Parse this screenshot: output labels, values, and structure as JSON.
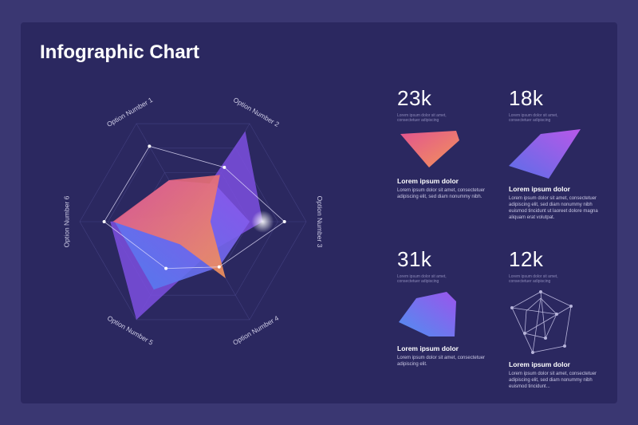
{
  "title": "Infographic Chart",
  "colors": {
    "background": "#3a3772",
    "card": "#2b2860",
    "coral": "#f07a63",
    "pink": "#e0568c",
    "violet": "#9a5cf0",
    "blue": "#5b6ee8"
  },
  "chart_data": {
    "type": "radar",
    "axes": [
      "Option Number 1",
      "Option Number 2",
      "Option Number 3",
      "Option Number 4",
      "Option Number 5",
      "Option Number 6"
    ],
    "series": [
      {
        "values": [
          0.55,
          0.62,
          0.2,
          0.75,
          0.3,
          0.92
        ]
      },
      {
        "values": [
          0.55,
          0.5,
          0.65,
          0.6,
          0.9,
          0.9
        ]
      },
      {
        "values": [
          0.1,
          1.2,
          0.8,
          0.4,
          1.3,
          0.95
        ]
      }
    ],
    "outline_values": [
      1.0,
      0.72,
      1.05,
      0.6,
      0.62,
      1.02
    ],
    "scale_max": 1.3
  },
  "stats": [
    {
      "value": "23k",
      "caption": "Lorem ipsum dolor sit amet, consectetuer adipiscing",
      "heading": "Lorem ipsum dolor",
      "body": "Lorem ipsum dolor sit amet, consectetuer adipiscing elit, sed diam nonummy nibh."
    },
    {
      "value": "18k",
      "caption": "Lorem ipsum dolor sit amet, consectetuer adipiscing",
      "heading": "Lorem ipsum dolor",
      "body": "Lorem ipsum dolor sit amet, consectetuer adipiscing elit, sed diam nonummy nibh euismod tincidunt ut laoreet dolore magna aliquam erat volutpat."
    },
    {
      "value": "31k",
      "caption": "Lorem ipsum dolor sit amet, consectetuer adipiscing",
      "heading": "Lorem ipsum dolor",
      "body": "Lorem ipsum dolor sit amet, consectetuer adipiscing elit."
    },
    {
      "value": "12k",
      "caption": "Lorem ipsum dolor sit amet, consectetuer adipiscing",
      "heading": "Lorem ipsum dolor",
      "body": "Lorem ipsum dolor sit amet, consectetuer adipiscing elit, sed diam nonummy nibh euismod tincidunt..."
    }
  ]
}
